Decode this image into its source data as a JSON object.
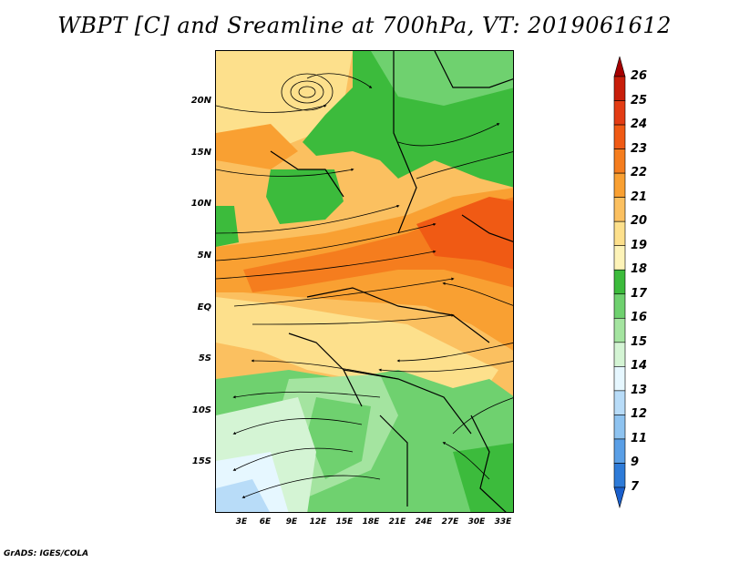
{
  "title": "WBPT [C] and Sreamline at 700hPa, VT: 2019061612",
  "credit": "GrADS: IGES/COLA",
  "y_axis": [
    "20N",
    "15N",
    "10N",
    "5N",
    "EQ",
    "5S",
    "10S",
    "15S"
  ],
  "x_axis": [
    "3E",
    "6E",
    "9E",
    "12E",
    "15E",
    "18E",
    "21E",
    "24E",
    "27E",
    "30E",
    "33E"
  ],
  "colorbar": {
    "labels": [
      "26",
      "25",
      "24",
      "23",
      "22",
      "21",
      "20",
      "19",
      "18",
      "17",
      "16",
      "15",
      "14",
      "13",
      "12",
      "11",
      "9",
      "7"
    ],
    "colors": [
      "#a50000",
      "#c81e0a",
      "#e33c14",
      "#f05a14",
      "#f57d1e",
      "#f9a032",
      "#fbc060",
      "#fde08c",
      "#fdf3b8",
      "#3cbb3c",
      "#6fd16f",
      "#a4e4a0",
      "#d4f4d4",
      "#e6f7ff",
      "#b8dcf8",
      "#8ec3f0",
      "#5a9fe6",
      "#2e7bd8",
      "#1a5fcc"
    ]
  }
}
